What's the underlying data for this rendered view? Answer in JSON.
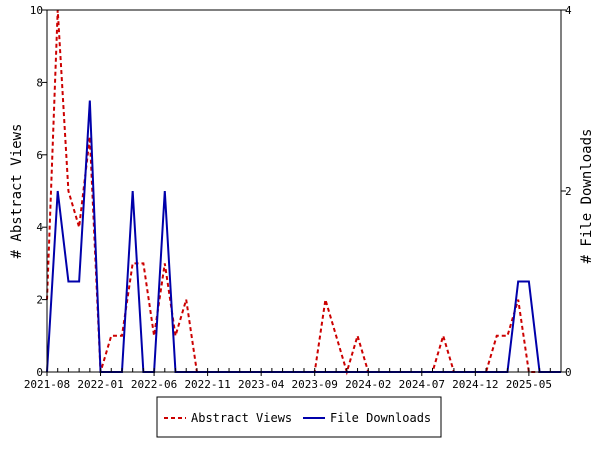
{
  "chart_data": {
    "type": "line",
    "title": "",
    "xlabel": "",
    "ylabel_left": "# Abstract Views",
    "ylabel_right": "# File Downloads",
    "ylim_left": [
      0,
      10
    ],
    "ylim_right": [
      0,
      4
    ],
    "yticks_left": [
      "0",
      "2",
      "4",
      "6",
      "8",
      "10"
    ],
    "yticks_right": [
      "0",
      "2",
      "4"
    ],
    "x_range": [
      "2021-08",
      "2025-08"
    ],
    "x_tick_labels": [
      "2021-08",
      "2022-01",
      "2022-06",
      "2022-11",
      "2023-04",
      "2023-09",
      "2024-02",
      "2024-07",
      "2024-12",
      "2025-05"
    ],
    "grid": false,
    "legend": "bottom-center",
    "series": [
      {
        "name": "Abstract Views",
        "axis": "left",
        "color": "#cc0000",
        "style": "dashed",
        "x": [
          "2021-08",
          "2021-09",
          "2021-10",
          "2021-11",
          "2021-12",
          "2022-01",
          "2022-02",
          "2022-03",
          "2022-04",
          "2022-05",
          "2022-06",
          "2022-07",
          "2022-08",
          "2022-09",
          "2022-10",
          "2022-11",
          "2022-12",
          "2023-01",
          "2023-02",
          "2023-03",
          "2023-04",
          "2023-05",
          "2023-06",
          "2023-07",
          "2023-08",
          "2023-09",
          "2023-10",
          "2023-11",
          "2023-12",
          "2024-01",
          "2024-02",
          "2024-03",
          "2024-04",
          "2024-05",
          "2024-06",
          "2024-07",
          "2024-08",
          "2024-09",
          "2024-10",
          "2024-11",
          "2024-12",
          "2025-01",
          "2025-02",
          "2025-03",
          "2025-04",
          "2025-05",
          "2025-06",
          "2025-07",
          "2025-08"
        ],
        "y": [
          2,
          10,
          5,
          4,
          6.5,
          0,
          1,
          1,
          3,
          3,
          1,
          3,
          1,
          2,
          0,
          0,
          0,
          0,
          0,
          0,
          0,
          0,
          0,
          0,
          0,
          0,
          2,
          1,
          0,
          1,
          0,
          0,
          0,
          0,
          0,
          0,
          0,
          1,
          0,
          0,
          0,
          0,
          1,
          1,
          2,
          0,
          0,
          0,
          0
        ]
      },
      {
        "name": "File Downloads",
        "axis": "right",
        "color": "#0000aa",
        "style": "solid",
        "x": [
          "2021-08",
          "2021-09",
          "2021-10",
          "2021-11",
          "2021-12",
          "2022-01",
          "2022-02",
          "2022-03",
          "2022-04",
          "2022-05",
          "2022-06",
          "2022-07",
          "2022-08",
          "2022-09",
          "2022-10",
          "2022-11",
          "2022-12",
          "2023-01",
          "2023-02",
          "2023-03",
          "2023-04",
          "2023-05",
          "2023-06",
          "2023-07",
          "2023-08",
          "2023-09",
          "2023-10",
          "2023-11",
          "2023-12",
          "2024-01",
          "2024-02",
          "2024-03",
          "2024-04",
          "2024-05",
          "2024-06",
          "2024-07",
          "2024-08",
          "2024-09",
          "2024-10",
          "2024-11",
          "2024-12",
          "2025-01",
          "2025-02",
          "2025-03",
          "2025-04",
          "2025-05",
          "2025-06",
          "2025-07",
          "2025-08"
        ],
        "y": [
          0,
          2,
          1,
          1,
          3,
          0,
          0,
          0,
          2,
          0,
          0,
          2,
          0,
          0,
          0,
          0,
          0,
          0,
          0,
          0,
          0,
          0,
          0,
          0,
          0,
          0,
          0,
          0,
          0,
          0,
          0,
          0,
          0,
          0,
          0,
          0,
          0,
          0,
          0,
          0,
          0,
          0,
          0,
          0,
          1,
          1,
          0,
          0,
          0
        ]
      }
    ]
  }
}
